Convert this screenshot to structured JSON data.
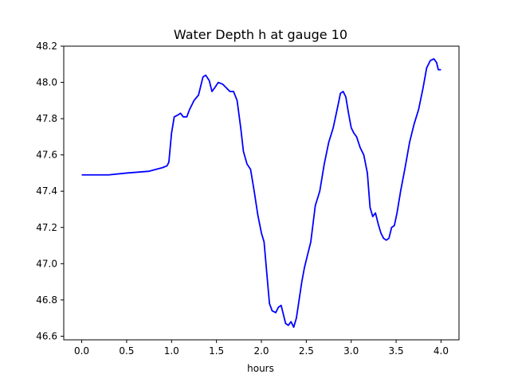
{
  "chart_data": {
    "type": "line",
    "title": "Water Depth h at gauge 10",
    "xlabel": "hours",
    "ylabel": "",
    "xlim": [
      -0.2,
      4.2
    ],
    "ylim": [
      46.58,
      48.2
    ],
    "xticks": [
      0.0,
      0.5,
      1.0,
      1.5,
      2.0,
      2.5,
      3.0,
      3.5,
      4.0
    ],
    "xtick_labels": [
      "0.0",
      "0.5",
      "1.0",
      "1.5",
      "2.0",
      "2.5",
      "3.0",
      "3.5",
      "4.0"
    ],
    "yticks": [
      46.6,
      46.8,
      47.0,
      47.2,
      47.4,
      47.6,
      47.8,
      48.0,
      48.2
    ],
    "ytick_labels": [
      "46.6",
      "46.8",
      "47.0",
      "47.2",
      "47.4",
      "47.6",
      "47.8",
      "48.0",
      "48.2"
    ],
    "grid": false,
    "line_color": "#0000ff",
    "series": [
      {
        "x": [
          0.0,
          0.3,
          0.5,
          0.75,
          0.9,
          0.95,
          0.97,
          1.0,
          1.03,
          1.07,
          1.1,
          1.13,
          1.17,
          1.2,
          1.25,
          1.3,
          1.35,
          1.38,
          1.42,
          1.45,
          1.48,
          1.52,
          1.57,
          1.61,
          1.65,
          1.69,
          1.73,
          1.77,
          1.8,
          1.84,
          1.88,
          1.92,
          1.96,
          2.0,
          2.03,
          2.06,
          2.09,
          2.12,
          2.16,
          2.19,
          2.22,
          2.24,
          2.27,
          2.3,
          2.33,
          2.36,
          2.39,
          2.42,
          2.45,
          2.48,
          2.51,
          2.55,
          2.6,
          2.65,
          2.7,
          2.75,
          2.8,
          2.83,
          2.86,
          2.88,
          2.91,
          2.94,
          2.97,
          3.0,
          3.03,
          3.06,
          3.1,
          3.14,
          3.18,
          3.21,
          3.24,
          3.27,
          3.3,
          3.33,
          3.36,
          3.39,
          3.42,
          3.45,
          3.48,
          3.51,
          3.55,
          3.6,
          3.65,
          3.7,
          3.75,
          3.8,
          3.84,
          3.88,
          3.92,
          3.95,
          3.97,
          4.0
        ],
        "y": [
          47.49,
          47.49,
          47.5,
          47.51,
          47.53,
          47.54,
          47.56,
          47.72,
          47.81,
          47.82,
          47.83,
          47.81,
          47.81,
          47.85,
          47.9,
          47.93,
          48.03,
          48.04,
          48.01,
          47.95,
          47.97,
          48.0,
          47.99,
          47.97,
          47.95,
          47.95,
          47.9,
          47.75,
          47.62,
          47.55,
          47.52,
          47.4,
          47.27,
          47.17,
          47.12,
          46.95,
          46.78,
          46.74,
          46.73,
          46.76,
          46.77,
          46.73,
          46.67,
          46.66,
          46.68,
          46.65,
          46.7,
          46.8,
          46.9,
          46.98,
          47.04,
          47.12,
          47.32,
          47.4,
          47.55,
          47.67,
          47.75,
          47.82,
          47.89,
          47.94,
          47.95,
          47.92,
          47.83,
          47.75,
          47.72,
          47.7,
          47.64,
          47.6,
          47.5,
          47.31,
          47.26,
          47.28,
          47.22,
          47.17,
          47.14,
          47.13,
          47.14,
          47.2,
          47.21,
          47.28,
          47.4,
          47.53,
          47.67,
          47.77,
          47.85,
          47.97,
          48.08,
          48.12,
          48.13,
          48.11,
          48.07,
          48.07
        ]
      }
    ]
  }
}
